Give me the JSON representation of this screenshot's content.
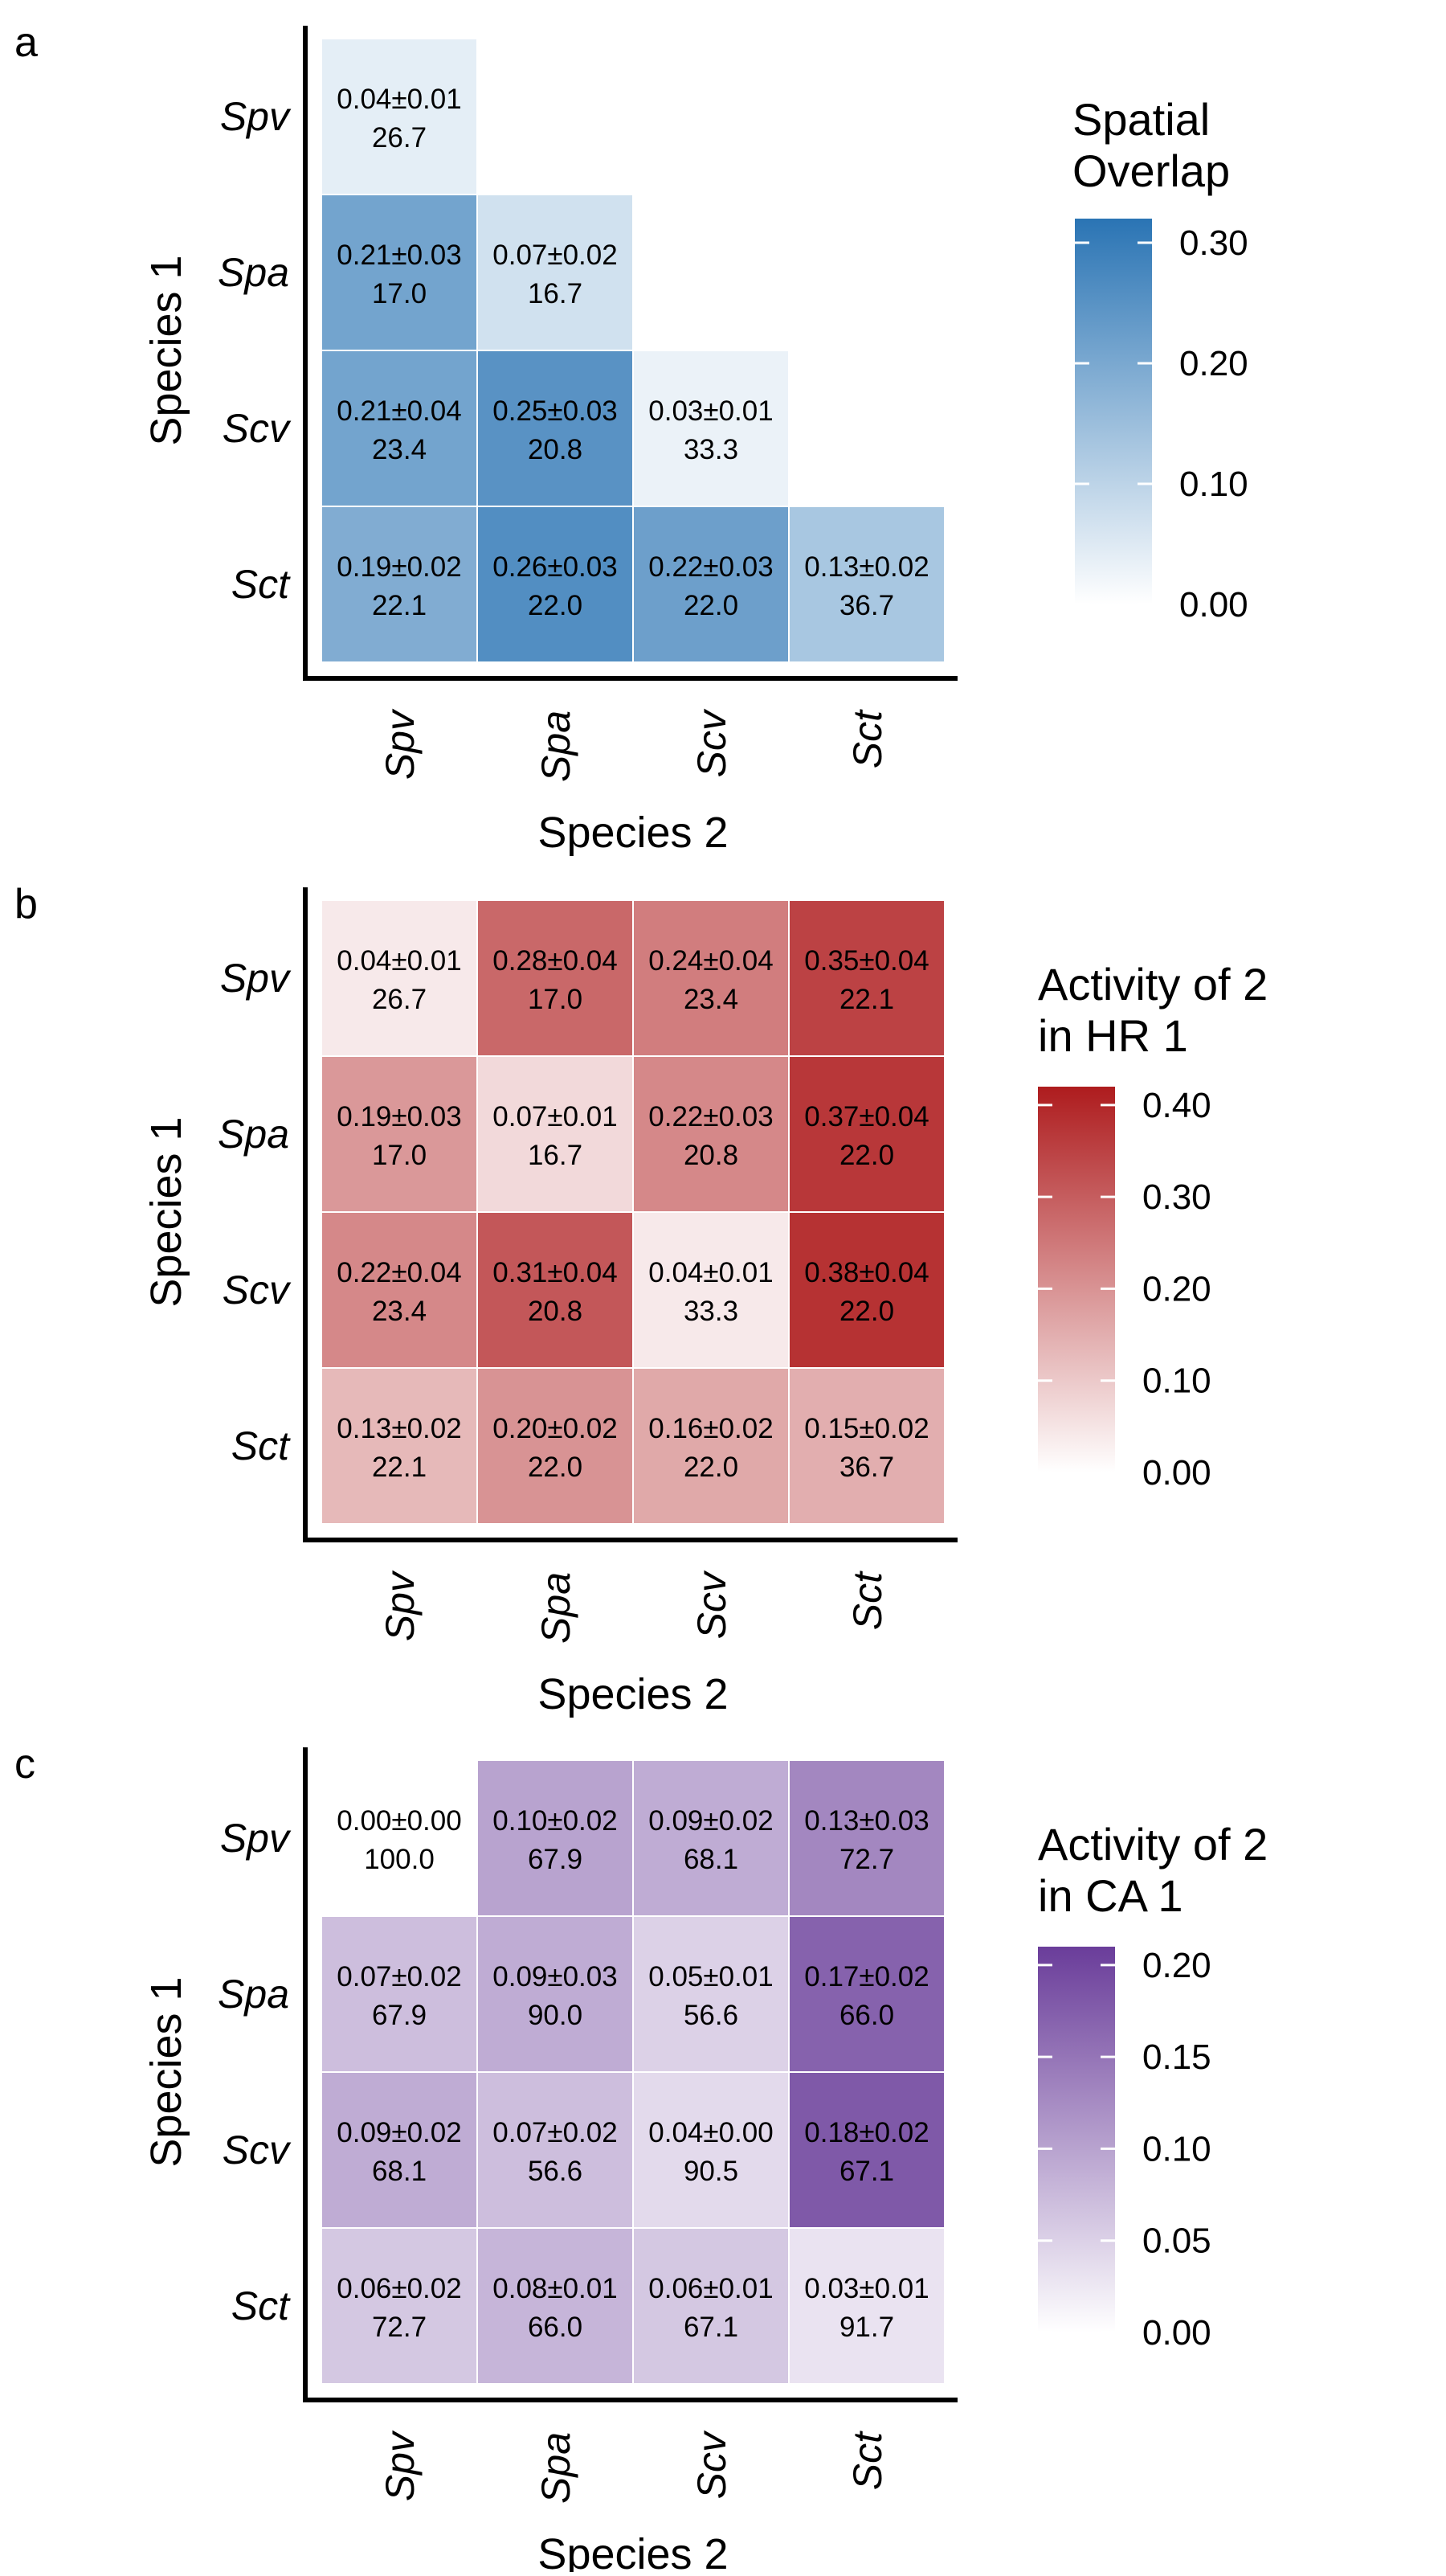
{
  "chart_data": [
    {
      "type": "heatmap",
      "panel_label": "a",
      "xlabel": "Species 2",
      "ylabel": "Species 1",
      "x_categories": [
        "Spv",
        "Spa",
        "Scv",
        "Sct"
      ],
      "y_categories": [
        "Spv",
        "Spa",
        "Scv",
        "Sct"
      ],
      "legend_title": [
        "Spatial",
        "Overlap"
      ],
      "legend_ticks": [
        "0.30",
        "0.20",
        "0.10",
        "0.00"
      ],
      "color_scale": {
        "min": 0.0,
        "max": 0.32,
        "low": "#ffffff",
        "high": "#2a74b4"
      },
      "cells": [
        {
          "row": "Spv",
          "col": "Spv",
          "value": 0.04,
          "label": "0.04±0.01",
          "sub": "26.7"
        },
        {
          "row": "Spa",
          "col": "Spv",
          "value": 0.21,
          "label": "0.21±0.03",
          "sub": "17.0"
        },
        {
          "row": "Spa",
          "col": "Spa",
          "value": 0.07,
          "label": "0.07±0.02",
          "sub": "16.7"
        },
        {
          "row": "Scv",
          "col": "Spv",
          "value": 0.21,
          "label": "0.21±0.04",
          "sub": "23.4"
        },
        {
          "row": "Scv",
          "col": "Spa",
          "value": 0.25,
          "label": "0.25±0.03",
          "sub": "20.8"
        },
        {
          "row": "Scv",
          "col": "Scv",
          "value": 0.03,
          "label": "0.03±0.01",
          "sub": "33.3"
        },
        {
          "row": "Sct",
          "col": "Spv",
          "value": 0.19,
          "label": "0.19±0.02",
          "sub": "22.1"
        },
        {
          "row": "Sct",
          "col": "Spa",
          "value": 0.26,
          "label": "0.26±0.03",
          "sub": "22.0"
        },
        {
          "row": "Sct",
          "col": "Scv",
          "value": 0.22,
          "label": "0.22±0.03",
          "sub": "22.0"
        },
        {
          "row": "Sct",
          "col": "Sct",
          "value": 0.13,
          "label": "0.13±0.02",
          "sub": "36.7"
        }
      ]
    },
    {
      "type": "heatmap",
      "panel_label": "b",
      "xlabel": "Species 2",
      "ylabel": "Species 1",
      "x_categories": [
        "Spv",
        "Spa",
        "Scv",
        "Sct"
      ],
      "y_categories": [
        "Spv",
        "Spa",
        "Scv",
        "Sct"
      ],
      "legend_title": [
        "Activity of 2",
        "in HR 1"
      ],
      "legend_ticks": [
        "0.40",
        "0.30",
        "0.20",
        "0.10",
        "0.00"
      ],
      "color_scale": {
        "min": 0.0,
        "max": 0.42,
        "low": "#ffffff",
        "high": "#ae1c1e"
      },
      "cells": [
        {
          "row": "Spv",
          "col": "Spv",
          "value": 0.04,
          "label": "0.04±0.01",
          "sub": "26.7"
        },
        {
          "row": "Spv",
          "col": "Spa",
          "value": 0.28,
          "label": "0.28±0.04",
          "sub": "17.0"
        },
        {
          "row": "Spv",
          "col": "Scv",
          "value": 0.24,
          "label": "0.24±0.04",
          "sub": "23.4"
        },
        {
          "row": "Spv",
          "col": "Sct",
          "value": 0.35,
          "label": "0.35±0.04",
          "sub": "22.1"
        },
        {
          "row": "Spa",
          "col": "Spv",
          "value": 0.19,
          "label": "0.19±0.03",
          "sub": "17.0"
        },
        {
          "row": "Spa",
          "col": "Spa",
          "value": 0.07,
          "label": "0.07±0.01",
          "sub": "16.7"
        },
        {
          "row": "Spa",
          "col": "Scv",
          "value": 0.22,
          "label": "0.22±0.03",
          "sub": "20.8"
        },
        {
          "row": "Spa",
          "col": "Sct",
          "value": 0.37,
          "label": "0.37±0.04",
          "sub": "22.0"
        },
        {
          "row": "Scv",
          "col": "Spv",
          "value": 0.22,
          "label": "0.22±0.04",
          "sub": "23.4"
        },
        {
          "row": "Scv",
          "col": "Spa",
          "value": 0.31,
          "label": "0.31±0.04",
          "sub": "20.8"
        },
        {
          "row": "Scv",
          "col": "Scv",
          "value": 0.04,
          "label": "0.04±0.01",
          "sub": "33.3"
        },
        {
          "row": "Scv",
          "col": "Sct",
          "value": 0.38,
          "label": "0.38±0.04",
          "sub": "22.0"
        },
        {
          "row": "Sct",
          "col": "Spv",
          "value": 0.13,
          "label": "0.13±0.02",
          "sub": "22.1"
        },
        {
          "row": "Sct",
          "col": "Spa",
          "value": 0.2,
          "label": "0.20±0.02",
          "sub": "22.0"
        },
        {
          "row": "Sct",
          "col": "Scv",
          "value": 0.16,
          "label": "0.16±0.02",
          "sub": "22.0"
        },
        {
          "row": "Sct",
          "col": "Sct",
          "value": 0.15,
          "label": "0.15±0.02",
          "sub": "36.7"
        }
      ]
    },
    {
      "type": "heatmap",
      "panel_label": "c",
      "xlabel": "Species 2",
      "ylabel": "Species 1",
      "x_categories": [
        "Spv",
        "Spa",
        "Scv",
        "Sct"
      ],
      "y_categories": [
        "Spv",
        "Spa",
        "Scv",
        "Sct"
      ],
      "legend_title": [
        "Activity of 2",
        "in CA 1"
      ],
      "legend_ticks": [
        "0.20",
        "0.15",
        "0.10",
        "0.05",
        "0.00"
      ],
      "color_scale": {
        "min": 0.0,
        "max": 0.21,
        "low": "#ffffff",
        "high": "#6a3d9a"
      },
      "cells": [
        {
          "row": "Spv",
          "col": "Spv",
          "value": 0.0,
          "label": "0.00±0.00",
          "sub": "100.0"
        },
        {
          "row": "Spv",
          "col": "Spa",
          "value": 0.1,
          "label": "0.10±0.02",
          "sub": "67.9"
        },
        {
          "row": "Spv",
          "col": "Scv",
          "value": 0.09,
          "label": "0.09±0.02",
          "sub": "68.1"
        },
        {
          "row": "Spv",
          "col": "Sct",
          "value": 0.13,
          "label": "0.13±0.03",
          "sub": "72.7"
        },
        {
          "row": "Spa",
          "col": "Spv",
          "value": 0.07,
          "label": "0.07±0.02",
          "sub": "67.9"
        },
        {
          "row": "Spa",
          "col": "Spa",
          "value": 0.09,
          "label": "0.09±0.03",
          "sub": "90.0"
        },
        {
          "row": "Spa",
          "col": "Scv",
          "value": 0.05,
          "label": "0.05±0.01",
          "sub": "56.6"
        },
        {
          "row": "Spa",
          "col": "Sct",
          "value": 0.17,
          "label": "0.17±0.02",
          "sub": "66.0"
        },
        {
          "row": "Scv",
          "col": "Spv",
          "value": 0.09,
          "label": "0.09±0.02",
          "sub": "68.1"
        },
        {
          "row": "Scv",
          "col": "Spa",
          "value": 0.07,
          "label": "0.07±0.02",
          "sub": "56.6"
        },
        {
          "row": "Scv",
          "col": "Scv",
          "value": 0.04,
          "label": "0.04±0.00",
          "sub": "90.5"
        },
        {
          "row": "Scv",
          "col": "Sct",
          "value": 0.18,
          "label": "0.18±0.02",
          "sub": "67.1"
        },
        {
          "row": "Sct",
          "col": "Spv",
          "value": 0.06,
          "label": "0.06±0.02",
          "sub": "72.7"
        },
        {
          "row": "Sct",
          "col": "Spa",
          "value": 0.08,
          "label": "0.08±0.01",
          "sub": "66.0"
        },
        {
          "row": "Sct",
          "col": "Scv",
          "value": 0.06,
          "label": "0.06±0.01",
          "sub": "67.1"
        },
        {
          "row": "Sct",
          "col": "Sct",
          "value": 0.03,
          "label": "0.03±0.01",
          "sub": "91.7"
        }
      ]
    }
  ]
}
